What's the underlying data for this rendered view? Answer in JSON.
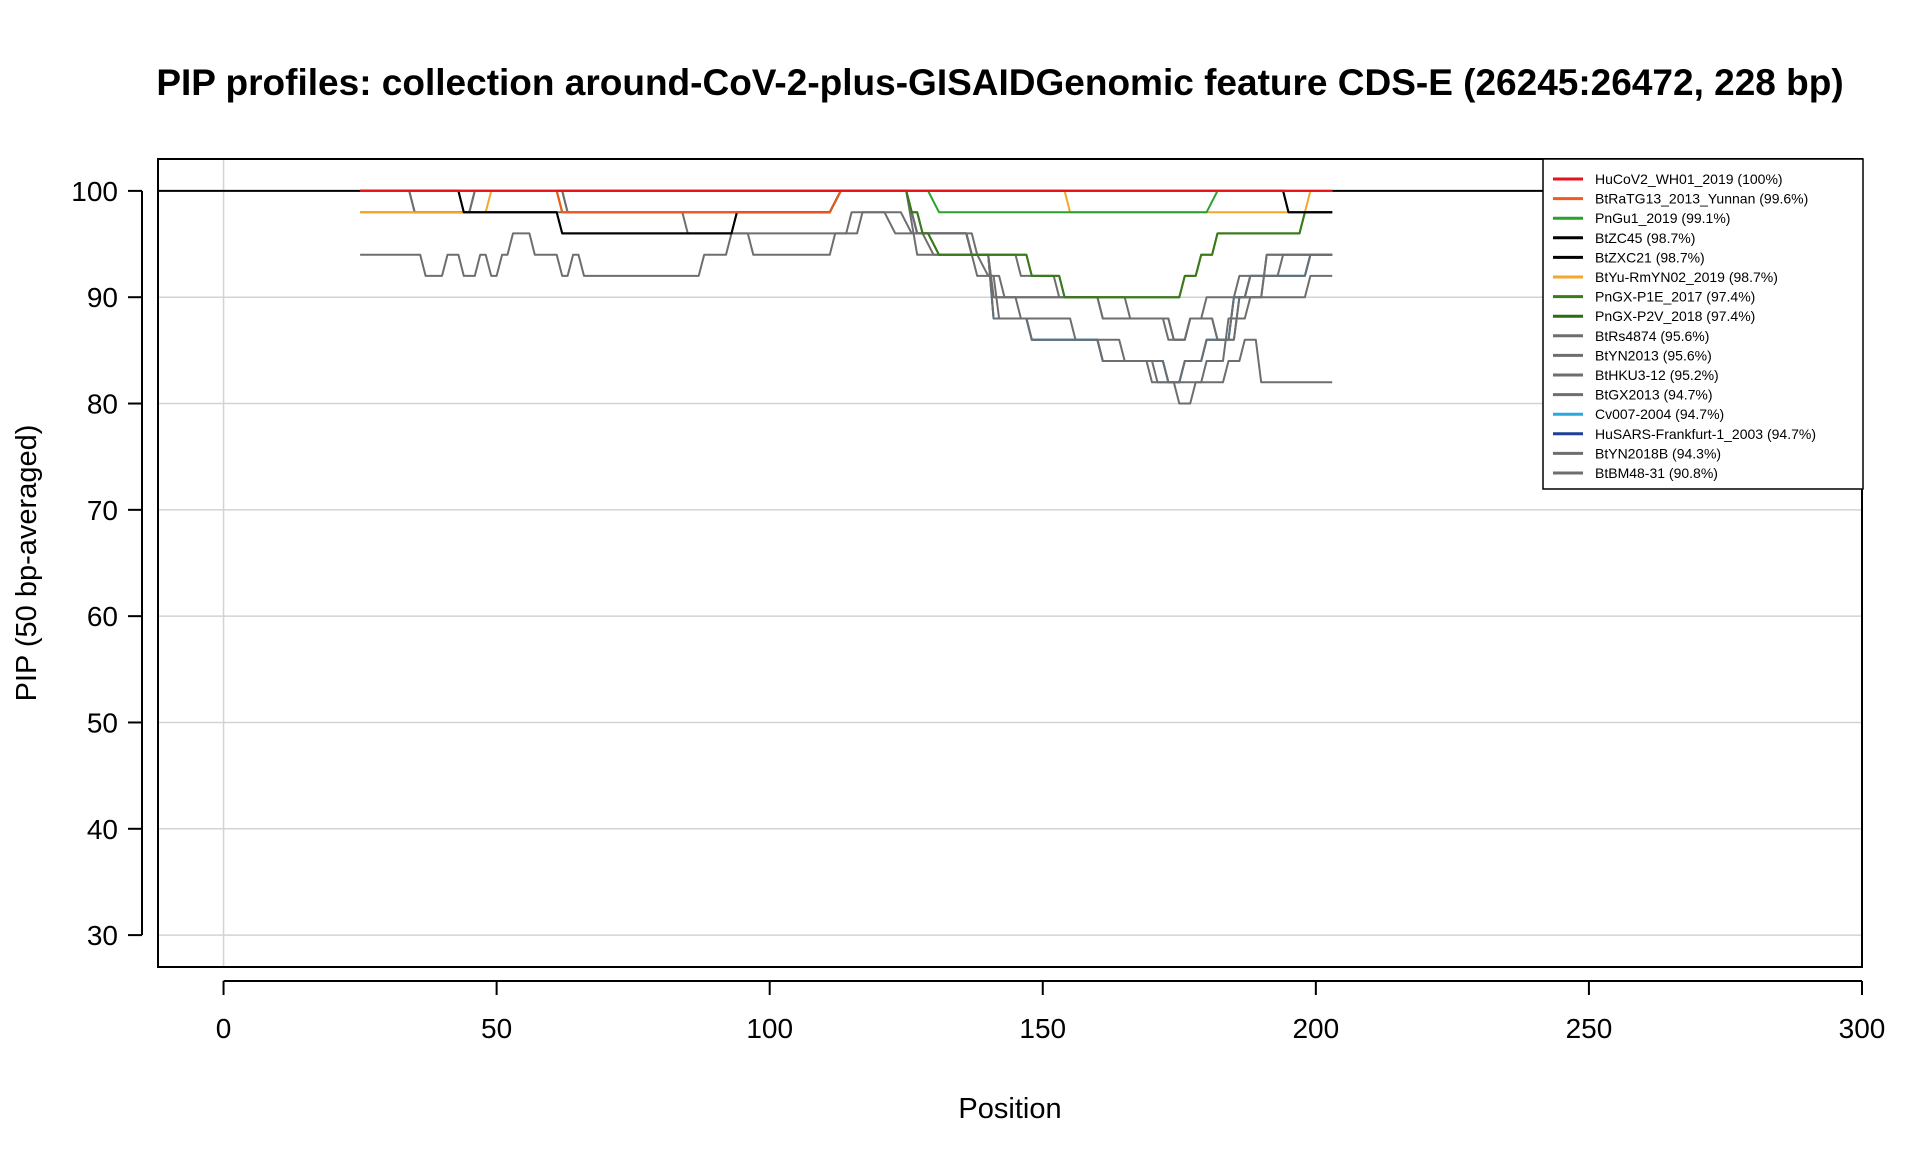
{
  "chart_data": {
    "type": "line",
    "title": "PIP profiles: collection around-CoV-2-plus-GISAIDGenomic feature CDS-E (26245:26472, 228 bp)",
    "xlabel": "Position",
    "ylabel": "PIP (50 bp-averaged)",
    "xlim": [
      -12,
      300
    ],
    "ylim": [
      27,
      103
    ],
    "x_ticks": [
      0,
      50,
      100,
      150,
      200,
      250,
      300
    ],
    "y_ticks": [
      30,
      40,
      50,
      60,
      70,
      80,
      90,
      100
    ],
    "x_tick_labels": [
      "0",
      "50",
      "100",
      "150",
      "200",
      "250",
      "300"
    ],
    "y_tick_labels": [
      "30",
      "40",
      "50",
      "60",
      "70",
      "80",
      "90",
      "100"
    ],
    "grid": true,
    "legend_position": "top-right",
    "reference_line": 100,
    "series": [
      {
        "name": "HuCoV2_WH01_2019 (100%)",
        "color": "#e8121c",
        "x": [
          25,
          203
        ],
        "y": [
          100,
          100
        ]
      },
      {
        "name": "BtRaTG13_2013_Yunnan (99.6%)",
        "color": "#f05a1e",
        "x": [
          25,
          61,
          62,
          111,
          113,
          203
        ],
        "y": [
          100,
          100,
          98,
          98,
          100,
          100
        ]
      },
      {
        "name": "PnGu1_2019 (99.1%)",
        "color": "#2ca02c",
        "x": [
          25,
          61,
          62,
          111,
          113,
          129,
          131,
          180,
          182,
          203
        ],
        "y": [
          100,
          100,
          98,
          98,
          100,
          100,
          98,
          98,
          100,
          100
        ]
      },
      {
        "name": "BtZC45 (98.7%)",
        "color": "#000000",
        "x": [
          25,
          43,
          44,
          61,
          62,
          93,
          94,
          111,
          113,
          194,
          195,
          203
        ],
        "y": [
          100,
          100,
          98,
          98,
          96,
          96,
          98,
          98,
          100,
          100,
          98,
          98
        ]
      },
      {
        "name": "BtZXC21 (98.7%)",
        "color": "#000000",
        "x": [
          25,
          43,
          44,
          61,
          62,
          93,
          94,
          111,
          113,
          194,
          195,
          203
        ],
        "y": [
          100,
          100,
          98,
          98,
          96,
          96,
          98,
          98,
          100,
          100,
          98,
          98
        ]
      },
      {
        "name": "BtYu-RmYN02_2019 (98.7%)",
        "color": "#f3a72b",
        "x": [
          25,
          48,
          49,
          61,
          62,
          111,
          113,
          154,
          155,
          198,
          199,
          203
        ],
        "y": [
          98,
          98,
          100,
          100,
          98,
          98,
          100,
          100,
          98,
          98,
          100,
          100
        ]
      },
      {
        "name": "PnGX-P1E_2017 (97.4%)",
        "color": "#3a7a1a",
        "x": [
          25,
          125,
          126,
          127,
          128,
          129,
          131,
          132,
          147,
          148,
          153,
          154,
          175,
          176,
          178,
          179,
          181,
          182,
          197,
          198,
          203
        ],
        "y": [
          100,
          100,
          98,
          98,
          96,
          96,
          94,
          94,
          94,
          92,
          92,
          90,
          90,
          92,
          92,
          94,
          94,
          96,
          96,
          98,
          98
        ]
      },
      {
        "name": "PnGX-P2V_2018 (97.4%)",
        "color": "#2d6b12",
        "x": [
          25,
          125,
          126,
          127,
          128,
          129,
          131,
          132,
          147,
          148,
          153,
          154,
          175,
          176,
          178,
          179,
          181,
          182,
          197,
          198,
          203
        ],
        "y": [
          100,
          100,
          98,
          98,
          96,
          96,
          94,
          94,
          94,
          92,
          92,
          90,
          90,
          92,
          92,
          94,
          94,
          96,
          96,
          98,
          98
        ]
      },
      {
        "name": "BtRs4874 (95.6%)",
        "color": "#6e6e6e",
        "x": [
          25,
          34,
          35,
          45,
          46,
          62,
          63,
          111,
          113,
          125,
          127,
          136,
          137,
          140,
          141,
          146,
          147,
          160,
          161,
          173,
          174,
          176,
          177,
          181,
          182,
          185,
          186,
          190,
          191,
          203
        ],
        "y": [
          100,
          100,
          98,
          98,
          100,
          100,
          98,
          98,
          100,
          100,
          96,
          96,
          94,
          94,
          90,
          90,
          90,
          90,
          88,
          88,
          86,
          86,
          88,
          88,
          86,
          86,
          90,
          90,
          94,
          94
        ]
      },
      {
        "name": "BtYN2013 (95.6%)",
        "color": "#6e6e6e",
        "x": [
          25,
          34,
          35,
          45,
          46,
          62,
          63,
          111,
          113,
          125,
          127,
          136,
          137,
          140,
          141,
          146,
          147,
          160,
          161,
          173,
          174,
          176,
          177,
          181,
          182,
          185,
          186,
          190,
          191,
          203
        ],
        "y": [
          100,
          100,
          98,
          98,
          100,
          100,
          98,
          98,
          100,
          100,
          96,
          96,
          94,
          94,
          90,
          90,
          90,
          90,
          88,
          88,
          86,
          86,
          88,
          88,
          86,
          86,
          90,
          90,
          94,
          94
        ]
      },
      {
        "name": "BtHKU3-12 (95.2%)",
        "color": "#6e6e6e",
        "x": [
          25,
          84,
          85,
          116,
          117,
          124,
          126,
          137,
          138,
          145,
          146,
          152,
          153,
          165,
          166,
          172,
          173,
          176,
          177,
          179,
          180,
          185,
          186,
          193,
          194,
          203
        ],
        "y": [
          98,
          98,
          96,
          96,
          98,
          98,
          96,
          96,
          94,
          94,
          92,
          92,
          90,
          90,
          88,
          88,
          86,
          86,
          88,
          88,
          90,
          90,
          92,
          92,
          94,
          94
        ]
      },
      {
        "name": "BtGX2013 (94.7%)",
        "color": "#6e6e6e",
        "x": [
          25,
          125,
          127,
          136,
          137,
          140,
          141,
          147,
          148,
          160,
          161,
          172,
          173,
          175,
          176,
          179,
          180,
          184,
          185,
          187,
          188,
          198,
          199,
          203
        ],
        "y": [
          100,
          100,
          96,
          96,
          94,
          94,
          88,
          88,
          86,
          86,
          84,
          84,
          82,
          82,
          84,
          84,
          86,
          86,
          90,
          90,
          92,
          92,
          94,
          94
        ]
      },
      {
        "name": "Cv007-2004 (94.7%)",
        "color": "#29a8e0",
        "x": [
          25,
          125,
          127,
          136,
          137,
          140,
          141,
          147,
          148,
          160,
          161,
          172,
          173,
          175,
          176,
          179,
          180,
          184,
          185,
          187,
          188,
          198,
          199,
          203
        ],
        "y": [
          100,
          100,
          96,
          96,
          94,
          94,
          88,
          88,
          86,
          86,
          84,
          84,
          82,
          82,
          84,
          84,
          86,
          86,
          90,
          90,
          92,
          92,
          94,
          94
        ]
      },
      {
        "name": "HuSARS-Frankfurt-1_2003 (94.7%)",
        "color": "#1f3f9a",
        "x": [
          25,
          125,
          127,
          136,
          137,
          140,
          141,
          147,
          148,
          160,
          161,
          172,
          173,
          175,
          176,
          179,
          180,
          184,
          185,
          187,
          188,
          198,
          199,
          203
        ],
        "y": [
          100,
          100,
          96,
          96,
          94,
          94,
          88,
          88,
          86,
          86,
          84,
          84,
          82,
          82,
          84,
          84,
          86,
          86,
          90,
          90,
          92,
          92,
          94,
          94
        ]
      },
      {
        "name": "BtYN2018B (94.3%)",
        "color": "#6e6e6e",
        "x": [
          25,
          125,
          127,
          137,
          138,
          141,
          142,
          147,
          148,
          160,
          161,
          169,
          170,
          174,
          175,
          177,
          178,
          179,
          180,
          183,
          184,
          187,
          188,
          193,
          194,
          198,
          199,
          203
        ],
        "y": [
          100,
          100,
          94,
          94,
          92,
          92,
          88,
          88,
          86,
          86,
          84,
          84,
          82,
          82,
          80,
          80,
          82,
          82,
          84,
          84,
          88,
          88,
          90,
          90,
          90,
          90,
          92,
          92
        ]
      },
      {
        "name": "BtBM48-31 (90.8%)",
        "color": "#6e6e6e",
        "x": [
          25,
          36,
          37,
          40,
          41,
          43,
          44,
          46,
          47,
          48,
          49,
          50,
          51,
          52,
          53,
          56,
          57,
          61,
          62,
          63,
          64,
          65,
          66,
          87,
          88,
          92,
          93,
          96,
          97,
          111,
          112,
          114,
          115,
          121,
          123,
          128,
          130,
          138,
          140,
          142,
          143,
          145,
          146,
          155,
          156,
          164,
          165,
          170,
          171,
          183,
          184,
          186,
          187,
          189,
          190,
          203
        ],
        "y": [
          94,
          94,
          92,
          92,
          94,
          94,
          92,
          92,
          94,
          94,
          92,
          92,
          94,
          94,
          96,
          96,
          94,
          94,
          92,
          92,
          94,
          94,
          92,
          92,
          94,
          94,
          96,
          96,
          94,
          94,
          96,
          96,
          98,
          98,
          96,
          96,
          94,
          94,
          92,
          92,
          90,
          90,
          88,
          88,
          86,
          86,
          84,
          84,
          82,
          82,
          84,
          84,
          86,
          86,
          82,
          82
        ]
      }
    ]
  }
}
